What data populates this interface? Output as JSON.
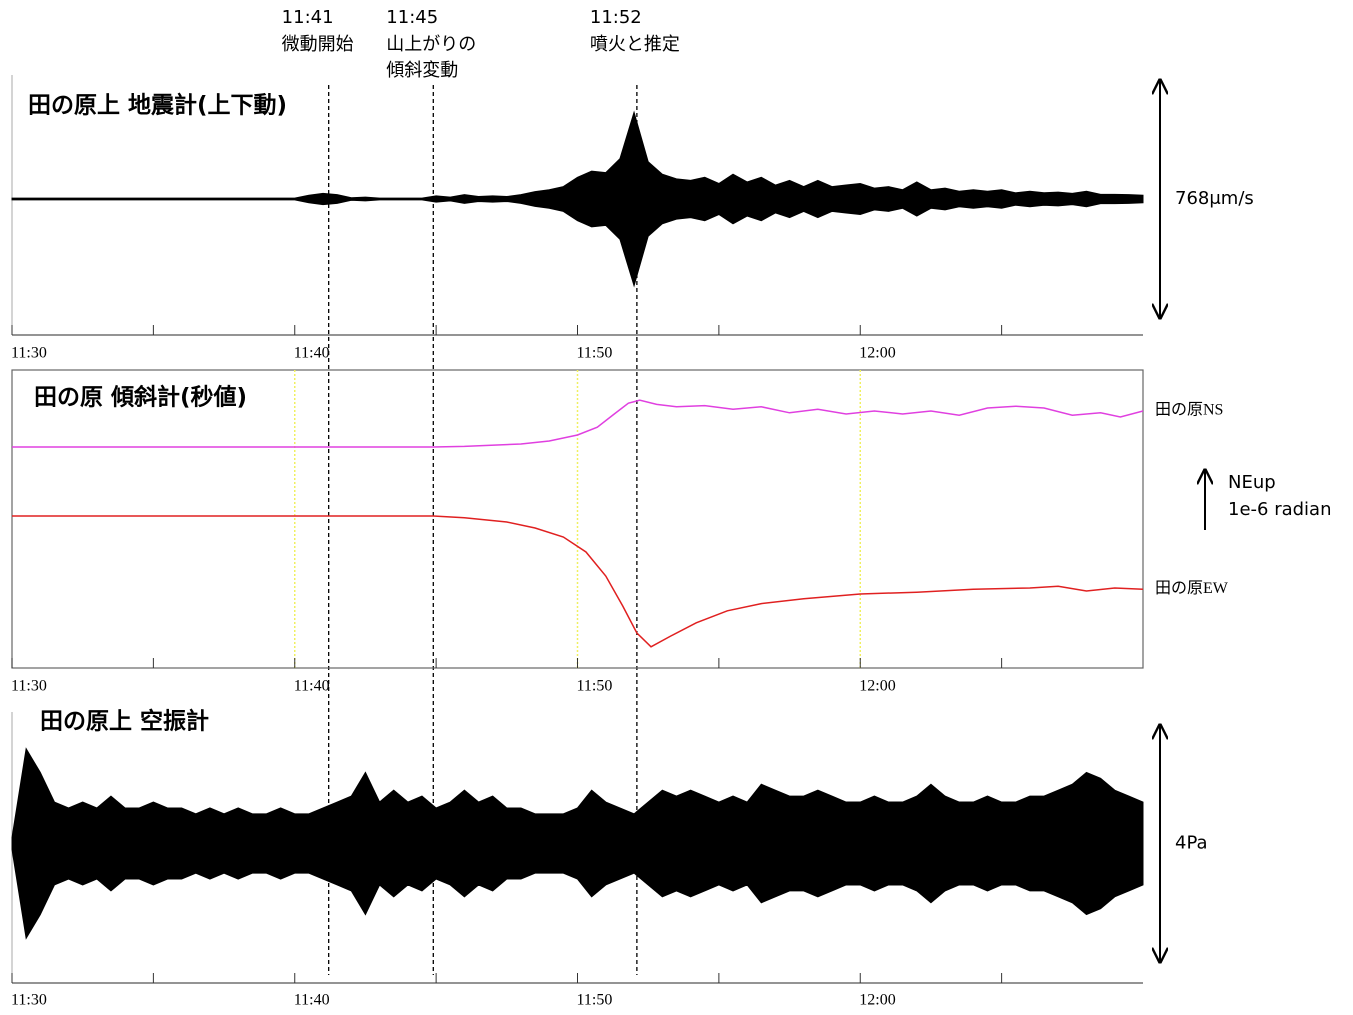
{
  "chart_data": [
    {
      "type": "envelope",
      "title": "田の原上 地震計(上下動)",
      "color": "#000000",
      "xlim": [
        690,
        730
      ],
      "xticks": [
        {
          "value": 690,
          "label": "11:30"
        },
        {
          "value": 700,
          "label": "11:40"
        },
        {
          "value": 710,
          "label": "11:50"
        },
        {
          "value": 720,
          "label": "12:00"
        }
      ],
      "xminorticks": [
        695,
        705,
        715,
        725
      ],
      "ylim": [
        -384,
        384
      ],
      "scale_label": "768μm/s",
      "x": [
        690,
        690.5,
        691,
        691.5,
        692,
        692.5,
        693,
        693.5,
        694,
        694.5,
        695,
        695.5,
        696,
        696.5,
        697,
        697.5,
        698,
        698.5,
        699,
        699.5,
        700,
        700.5,
        701,
        701.5,
        702,
        702.5,
        703,
        703.5,
        704,
        704.5,
        705,
        705.5,
        706,
        706.5,
        707,
        707.5,
        708,
        708.5,
        709,
        709.5,
        710,
        710.5,
        711,
        711.5,
        712,
        712.5,
        713,
        713.5,
        714,
        714.5,
        715,
        715.5,
        716,
        716.5,
        717,
        717.5,
        718,
        718.5,
        719,
        719.5,
        720,
        720.5,
        721,
        721.5,
        722,
        722.5,
        723,
        723.5,
        724,
        724.5,
        725,
        725.5,
        726,
        726.5,
        727,
        727.5,
        728,
        728.5,
        729,
        729.5,
        730
      ],
      "values": [
        3,
        3,
        3,
        3,
        3,
        3,
        3,
        3,
        3,
        3,
        3,
        3,
        3,
        3,
        3,
        3,
        3,
        3,
        3,
        3,
        3,
        12,
        18,
        14,
        4,
        6,
        3,
        3,
        3,
        3,
        10,
        6,
        14,
        8,
        10,
        8,
        14,
        24,
        30,
        40,
        70,
        90,
        85,
        130,
        280,
        120,
        80,
        65,
        60,
        70,
        50,
        80,
        55,
        70,
        45,
        60,
        40,
        60,
        40,
        45,
        50,
        35,
        40,
        30,
        55,
        30,
        35,
        25,
        30,
        25,
        30,
        20,
        25,
        20,
        22,
        18,
        25,
        15,
        15,
        14,
        12
      ],
      "annotations": [
        {
          "x": 701.2,
          "time": "11:41",
          "lines": [
            "微動開始"
          ]
        },
        {
          "x": 704.9,
          "time": "11:45",
          "lines": [
            "山上がりの",
            "傾斜変動"
          ]
        },
        {
          "x": 712.1,
          "time": "11:52",
          "lines": [
            "噴火と推定"
          ]
        }
      ]
    },
    {
      "type": "line",
      "title": "田の原 傾斜計(秒値)",
      "xlim": [
        690,
        730
      ],
      "xticks": [
        {
          "value": 690,
          "label": "11:30"
        },
        {
          "value": 700,
          "label": "11:40"
        },
        {
          "value": 710,
          "label": "11:50"
        },
        {
          "value": 720,
          "label": "12:00"
        }
      ],
      "xminorticks": [
        695,
        705,
        715,
        725
      ],
      "ylim": [
        -2.5,
        2.4
      ],
      "grid": true,
      "grid_color": "#f0f060",
      "scale_label": [
        "NEup",
        "1e-6 radian"
      ],
      "series": [
        {
          "name": "田の原NS",
          "color": "#e040e0",
          "x": [
            690,
            704.9,
            706,
            708,
            709,
            710,
            710.7,
            711.3,
            711.8,
            712.2,
            712.8,
            713.5,
            714.5,
            715.5,
            716.5,
            717.5,
            718.5,
            719.5,
            720.5,
            721.5,
            722.5,
            723.5,
            724.5,
            725.5,
            726.5,
            727.5,
            728.5,
            729.2,
            730
          ],
          "values": [
            1.15,
            1.15,
            1.16,
            1.2,
            1.25,
            1.35,
            1.48,
            1.7,
            1.88,
            1.93,
            1.86,
            1.82,
            1.84,
            1.78,
            1.82,
            1.72,
            1.78,
            1.7,
            1.75,
            1.7,
            1.75,
            1.68,
            1.8,
            1.83,
            1.8,
            1.68,
            1.72,
            1.65,
            1.75
          ]
        },
        {
          "name": "田の原EW",
          "color": "#e02020",
          "x": [
            690,
            704.9,
            706,
            707.5,
            708.5,
            709.5,
            710.3,
            711,
            711.6,
            712.1,
            712.6,
            713.3,
            714.2,
            715.3,
            716.5,
            718,
            720,
            722,
            724,
            726,
            727,
            728,
            729,
            730
          ],
          "values": [
            0,
            0,
            -0.03,
            -0.1,
            -0.2,
            -0.35,
            -0.6,
            -1.0,
            -1.5,
            -1.95,
            -2.18,
            -2.0,
            -1.78,
            -1.58,
            -1.46,
            -1.38,
            -1.3,
            -1.27,
            -1.22,
            -1.2,
            -1.17,
            -1.25,
            -1.2,
            -1.22
          ]
        }
      ]
    },
    {
      "type": "envelope",
      "title": "田の原上 空振計",
      "color": "#000000",
      "xlim": [
        690,
        730
      ],
      "xticks": [
        {
          "value": 690,
          "label": "11:30"
        },
        {
          "value": 700,
          "label": "11:40"
        },
        {
          "value": 710,
          "label": "11:50"
        },
        {
          "value": 720,
          "label": "12:00"
        }
      ],
      "xminorticks": [
        695,
        705,
        715,
        725
      ],
      "ylim": [
        -2,
        2
      ],
      "scale_label": "4Pa",
      "x": [
        690,
        690.5,
        691,
        691.5,
        692,
        692.5,
        693,
        693.5,
        694,
        694.5,
        695,
        695.5,
        696,
        696.5,
        697,
        697.5,
        698,
        698.5,
        699,
        699.5,
        700,
        700.5,
        701,
        701.5,
        702,
        702.5,
        703,
        703.5,
        704,
        704.5,
        705,
        705.5,
        706,
        706.5,
        707,
        707.5,
        708,
        708.5,
        709,
        709.5,
        710,
        710.5,
        711,
        711.5,
        712,
        712.5,
        713,
        713.5,
        714,
        714.5,
        715,
        715.5,
        716,
        716.5,
        717,
        717.5,
        718,
        718.5,
        719,
        719.5,
        720,
        720.5,
        721,
        721.5,
        722,
        722.5,
        723,
        723.5,
        724,
        724.5,
        725,
        725.5,
        726,
        726.5,
        727,
        727.5,
        728,
        728.5,
        729,
        729.5,
        730
      ],
      "values": [
        0.1,
        1.6,
        1.2,
        0.7,
        0.6,
        0.7,
        0.6,
        0.8,
        0.6,
        0.6,
        0.7,
        0.6,
        0.6,
        0.5,
        0.6,
        0.5,
        0.6,
        0.5,
        0.5,
        0.6,
        0.5,
        0.5,
        0.6,
        0.7,
        0.8,
        1.2,
        0.7,
        0.9,
        0.7,
        0.8,
        0.6,
        0.7,
        0.9,
        0.7,
        0.8,
        0.6,
        0.6,
        0.5,
        0.5,
        0.5,
        0.6,
        0.9,
        0.7,
        0.6,
        0.5,
        0.7,
        0.9,
        0.8,
        0.9,
        0.8,
        0.7,
        0.8,
        0.7,
        1.0,
        0.9,
        0.8,
        0.8,
        0.9,
        0.8,
        0.7,
        0.7,
        0.8,
        0.7,
        0.7,
        0.8,
        1.0,
        0.8,
        0.7,
        0.7,
        0.8,
        0.7,
        0.7,
        0.8,
        0.8,
        0.9,
        1.0,
        1.2,
        1.1,
        0.9,
        0.8,
        0.7
      ]
    }
  ]
}
